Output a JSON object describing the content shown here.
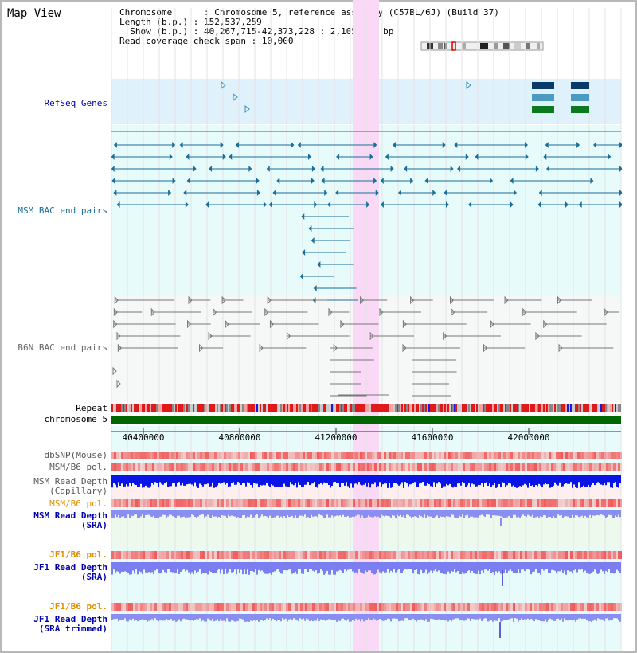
{
  "page": {
    "title": "Map View",
    "info_lines": [
      "Chromosome      : Chromosome 5, reference assembly (C57BL/6J) (Build 37)",
      "Length (b.p.) : 152,537,259",
      "  Show (b.p.) : 40,267,715-42,373,228 : 2,105,514 bp",
      "Read coverage check span : 10,000"
    ]
  },
  "tracks": {
    "refseq": "RefSeq Genes",
    "msm_bac": "MSM BAC end pairs",
    "b6n_bac": "B6N BAC end pairs",
    "repeat": "Repeat",
    "chromosome": "chromosome 5",
    "dbsnp": "dbSNP(Mouse)",
    "msm_b6_pol": "MSM/B6 pol.",
    "msm_read_depth_cap_1": "MSM Read Depth",
    "msm_read_depth_cap_2": "(Capillary)",
    "msm_b6_pol_2": "MSM/B6 pol.",
    "msm_read_depth_sra_1": "MSM Read Depth",
    "msm_read_depth_sra_2": "(SRA)",
    "jf1_b6_pol": "JF1/B6 pol.",
    "jf1_read_depth_sra_1": "JF1 Read Depth",
    "jf1_read_depth_sra_2": "(SRA)",
    "jf1_b6_pol_2": "JF1/B6 pol.",
    "jf1_read_depth_trim_1": "JF1 Read Depth",
    "jf1_read_depth_trim_2": "(SRA trimmed)"
  },
  "axis": {
    "ticks": [
      "40400000",
      "40800000",
      "41200000",
      "41600000",
      "42000000"
    ]
  },
  "colors": {
    "refseq_bg": "#dff2fc",
    "bac_bg": "#e8fbfb",
    "highlight": "#f9d9f5",
    "msm_feature": "#1a6e9a",
    "b6n_feature": "#777777",
    "chromosome": "#006600",
    "depth_cap": "#0a14e6",
    "depth_sra": "#8a8ef0",
    "label_blue": "#0000aa",
    "label_orange": "#e09000",
    "label_teal": "#1a6e9a"
  }
}
